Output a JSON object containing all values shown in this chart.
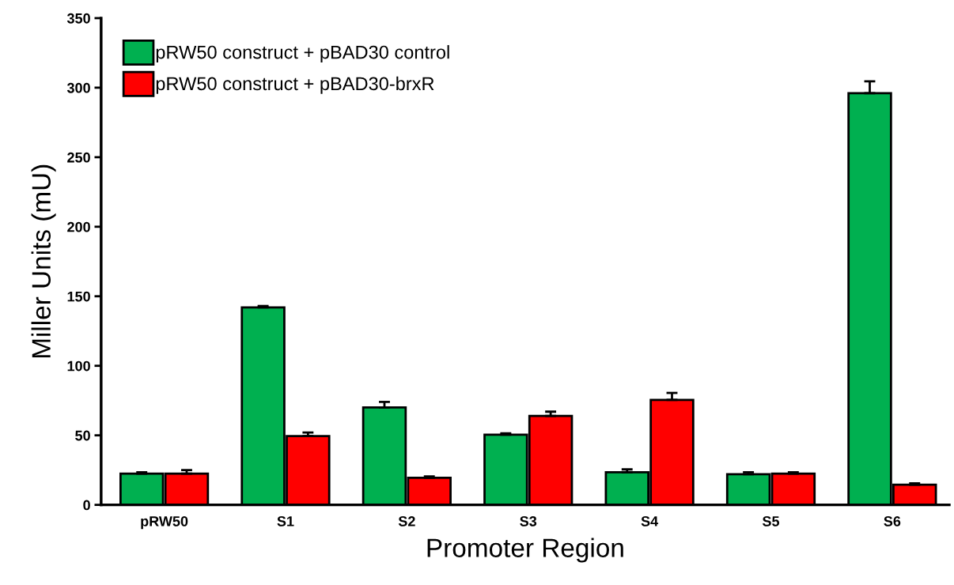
{
  "chart_data": {
    "type": "bar",
    "xlabel": "Promoter Region",
    "ylabel": "Miller Units (mU)",
    "categories": [
      "pRW50",
      "S1",
      "S2",
      "S3",
      "S4",
      "S5",
      "S6"
    ],
    "series": [
      {
        "name": "pRW50 construct + pBAD30 control",
        "color": "#00b050",
        "values": [
          22.5,
          142,
          70,
          50.5,
          23.5,
          22,
          296
        ],
        "errors": [
          1,
          1,
          4,
          1,
          2,
          1.5,
          8.5
        ]
      },
      {
        "name": "pRW50 construct + pBAD30-brxR",
        "color": "#ff0000",
        "values": [
          22.5,
          49.5,
          19.5,
          64,
          75.5,
          22.5,
          14.5
        ],
        "errors": [
          2.5,
          2.5,
          1,
          3,
          5,
          1,
          1
        ]
      }
    ],
    "ylim": [
      0,
      350
    ],
    "yticks": [
      0,
      50,
      100,
      150,
      200,
      250,
      300,
      350
    ],
    "grid": false,
    "legend": "top left"
  }
}
